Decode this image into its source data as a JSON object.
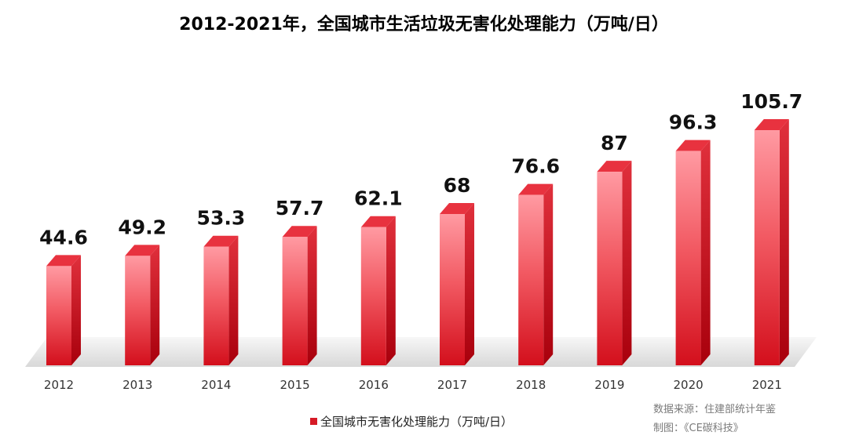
{
  "chart_data": {
    "type": "bar",
    "title": "2012-2021年，全国城市生活垃圾无害化处理能力（万吨/日）",
    "categories": [
      "2012",
      "2013",
      "2014",
      "2015",
      "2016",
      "2017",
      "2018",
      "2019",
      "2020",
      "2021"
    ],
    "series": [
      {
        "name": "全国城市无害化处理能力（万吨/日）",
        "values": [
          44.6,
          49.2,
          53.3,
          57.7,
          62.1,
          68,
          76.6,
          87,
          96.3,
          105.7
        ],
        "labels": [
          "44.6",
          "49.2",
          "53.3",
          "57.7",
          "62.1",
          "68",
          "76.6",
          "87",
          "96.3",
          "105.7"
        ]
      }
    ],
    "ylim": [
      0,
      110
    ],
    "xlabel": "",
    "ylabel": "",
    "legend_position": "bottom",
    "grid": false
  },
  "legend": {
    "label": "全国城市无害化处理能力（万吨/日）"
  },
  "source": {
    "line1": "数据来源：住建部统计年鉴",
    "line2": "制图：《CE碳科技》"
  },
  "colors": {
    "bar_light": "#ffb0b6",
    "bar_mid": "#f04a55",
    "bar_dark": "#d10f1c",
    "bar_side": "#b8000e",
    "bar_top": "#e8323f",
    "floor": "#e3e3e3"
  }
}
